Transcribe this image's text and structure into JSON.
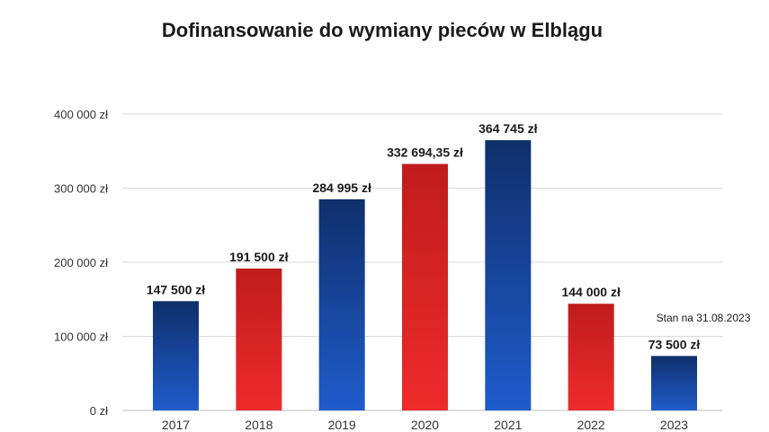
{
  "chart_data": {
    "type": "bar",
    "title": "Dofinansowanie do wymiany pieców w Elblągu",
    "categories": [
      "2017",
      "2018",
      "2019",
      "2020",
      "2021",
      "2022",
      "2023"
    ],
    "values": [
      147500,
      191500,
      284995,
      332694.35,
      364745,
      144000,
      73500
    ],
    "data_labels": [
      "147 500 zł",
      "191 500 zł",
      "284 995 zł",
      "332 694,35 zł",
      "364 745 zł",
      "144 000 zł",
      "73 500 zł"
    ],
    "bar_colors": [
      "blue",
      "red",
      "blue",
      "red",
      "blue",
      "red",
      "blue"
    ],
    "ylim": [
      0,
      400000
    ],
    "yticks": [
      0,
      100000,
      200000,
      300000,
      400000
    ],
    "ytick_labels": [
      "0 zł",
      "100 000 zł",
      "200 000 zł",
      "300 000 zł",
      "400 000 zł"
    ],
    "grid": true,
    "annotation": "Stan na 31.08.2023"
  },
  "colors": {
    "blue_top": "#0f2f6b",
    "blue_bottom": "#1f5ccc",
    "red_top": "#c01c1c",
    "red_bottom": "#ee2b2b"
  }
}
